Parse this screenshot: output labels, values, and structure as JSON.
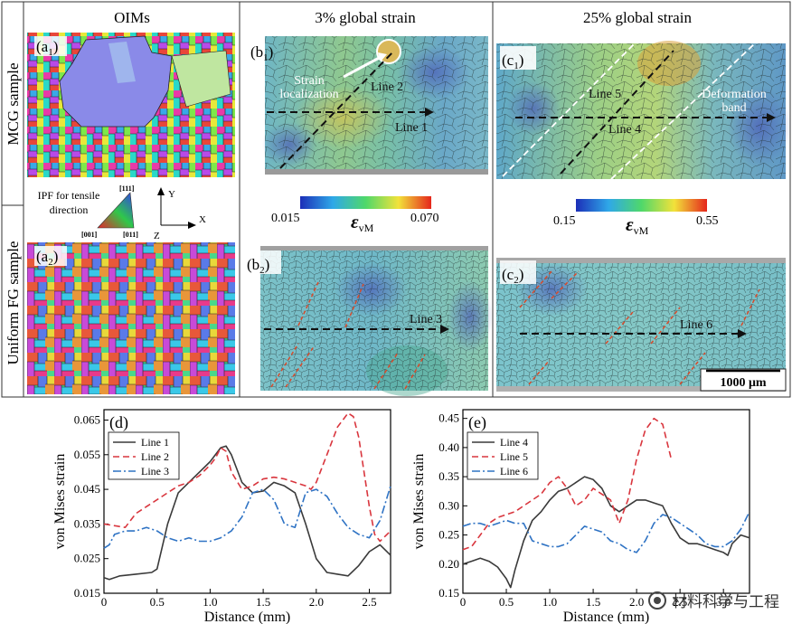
{
  "panels": {
    "col1_title": "OIMs",
    "col2_title": "3% global strain",
    "col3_title": "25% global strain",
    "row1_label": "MCG sample",
    "row2_label": "Uniform FG sample",
    "a1_label": "(a",
    "a1_sub": "1",
    "a2_label": "(a",
    "a2_sub": "2",
    "b1_label": "(b",
    "b1_sub": "1",
    "b2_label": "(b",
    "b2_sub": "2",
    "c1_label": "(c",
    "c1_sub": "1",
    "c2_label": "(c",
    "c2_sub": "2",
    "label_close": ")",
    "ipf_title_1": "IPF for tensile",
    "ipf_title_2": "direction",
    "ipf_111": "[111]",
    "ipf_001": "[001]",
    "ipf_011": "[011]",
    "axis_y": "Y",
    "axis_x": "X",
    "axis_z": "Z",
    "strain_loc_1": "Strain",
    "strain_loc_2": "localization",
    "line1": "Line 1",
    "line2": "Line 2",
    "line3": "Line 3",
    "line4": "Line 4",
    "line5": "Line 5",
    "line6": "Line 6",
    "deformation_1": "Deformation",
    "deformation_2": "band",
    "cb1_min": "0.015",
    "cb1_max": "0.070",
    "cb2_min": "0.15",
    "cb2_max": "0.55",
    "cb_symbol": "ε",
    "cb_sub": "vM",
    "scale_bar": "1000 μm"
  },
  "watermark": {
    "text": "材料科学与工程"
  },
  "colors": {
    "line_solid": "#3a3a3a",
    "line_dash": "#d9363e",
    "line_dashdot": "#2f73c4"
  },
  "chart_data": [
    {
      "id": "d",
      "type": "line",
      "panel_label": "(d)",
      "ylabel": "von Mises strain",
      "xlabel": "Distance (mm)",
      "xlim": [
        0,
        2.7
      ],
      "ylim": [
        0.015,
        0.068
      ],
      "xticks": [
        0,
        0.5,
        1.0,
        1.5,
        2.0,
        2.5
      ],
      "xtick_labels": [
        "0",
        "0.5",
        "1.0",
        "1.5",
        "2.0",
        "2.5"
      ],
      "yticks": [
        0.015,
        0.025,
        0.035,
        0.045,
        0.055,
        0.065
      ],
      "ytick_labels": [
        "0.015",
        "0.025",
        "0.035",
        "0.045",
        "0.055",
        "0.065"
      ],
      "legend": "top-left",
      "series": [
        {
          "name": "Line 1",
          "style": "solid",
          "x": [
            0,
            0.05,
            0.15,
            0.3,
            0.45,
            0.5,
            0.6,
            0.7,
            0.8,
            0.9,
            1.0,
            1.1,
            1.15,
            1.2,
            1.3,
            1.4,
            1.5,
            1.6,
            1.7,
            1.8,
            1.9,
            2.0,
            2.1,
            2.2,
            2.3,
            2.4,
            2.5,
            2.6,
            2.7
          ],
          "y": [
            0.0195,
            0.019,
            0.02,
            0.0205,
            0.021,
            0.022,
            0.035,
            0.044,
            0.047,
            0.05,
            0.053,
            0.057,
            0.0575,
            0.055,
            0.047,
            0.044,
            0.0445,
            0.047,
            0.046,
            0.044,
            0.035,
            0.025,
            0.021,
            0.0205,
            0.02,
            0.023,
            0.027,
            0.029,
            0.026
          ]
        },
        {
          "name": "Line 2",
          "style": "dashed",
          "x": [
            0,
            0.1,
            0.2,
            0.3,
            0.4,
            0.5,
            0.6,
            0.7,
            0.8,
            0.9,
            1.0,
            1.05,
            1.1,
            1.15,
            1.2,
            1.3,
            1.4,
            1.5,
            1.6,
            1.7,
            1.8,
            1.9,
            1.95,
            2.0,
            2.1,
            2.2,
            2.3,
            2.35,
            2.4,
            2.5,
            2.55,
            2.6,
            2.7
          ],
          "y": [
            0.035,
            0.0345,
            0.034,
            0.038,
            0.04,
            0.042,
            0.044,
            0.046,
            0.047,
            0.049,
            0.052,
            0.054,
            0.057,
            0.056,
            0.05,
            0.045,
            0.046,
            0.048,
            0.0485,
            0.048,
            0.047,
            0.046,
            0.045,
            0.047,
            0.055,
            0.063,
            0.067,
            0.066,
            0.06,
            0.04,
            0.032,
            0.03,
            0.033
          ]
        },
        {
          "name": "Line 3",
          "style": "dashdot",
          "x": [
            0,
            0.05,
            0.1,
            0.2,
            0.3,
            0.4,
            0.5,
            0.6,
            0.7,
            0.8,
            0.9,
            1.0,
            1.1,
            1.2,
            1.3,
            1.4,
            1.5,
            1.6,
            1.7,
            1.8,
            1.9,
            2.0,
            2.1,
            2.2,
            2.3,
            2.4,
            2.5,
            2.6,
            2.7
          ],
          "y": [
            0.028,
            0.029,
            0.032,
            0.033,
            0.033,
            0.034,
            0.033,
            0.031,
            0.03,
            0.031,
            0.03,
            0.03,
            0.031,
            0.033,
            0.037,
            0.044,
            0.045,
            0.042,
            0.035,
            0.034,
            0.044,
            0.045,
            0.043,
            0.038,
            0.034,
            0.032,
            0.031,
            0.036,
            0.046
          ]
        }
      ]
    },
    {
      "id": "e",
      "type": "line",
      "panel_label": "(e)",
      "ylabel": "von Mises strain",
      "xlabel": "Distance (mm)",
      "xlim": [
        0,
        3.3
      ],
      "ylim": [
        0.15,
        0.465
      ],
      "xticks": [
        0,
        0.5,
        1.0,
        1.5,
        2.0,
        2.5,
        3.0
      ],
      "xtick_labels": [
        "0",
        "0.5",
        "1.0",
        "1.5",
        "2.0",
        "2.5",
        "3.0"
      ],
      "yticks": [
        0.15,
        0.2,
        0.25,
        0.3,
        0.35,
        0.4,
        0.45
      ],
      "ytick_labels": [
        "0.15",
        "0.20",
        "0.25",
        "0.30",
        "0.35",
        "0.40",
        "0.45"
      ],
      "legend": "top-left",
      "series": [
        {
          "name": "Line 4",
          "style": "solid",
          "x": [
            0,
            0.1,
            0.2,
            0.3,
            0.4,
            0.5,
            0.55,
            0.6,
            0.7,
            0.8,
            0.9,
            1.0,
            1.1,
            1.2,
            1.3,
            1.4,
            1.5,
            1.6,
            1.7,
            1.8,
            1.9,
            2.0,
            2.1,
            2.2,
            2.3,
            2.4,
            2.5,
            2.6,
            2.7,
            2.8,
            2.9,
            3.0,
            3.05,
            3.1,
            3.2,
            3.3
          ],
          "y": [
            0.2,
            0.205,
            0.21,
            0.205,
            0.195,
            0.175,
            0.16,
            0.19,
            0.24,
            0.275,
            0.29,
            0.31,
            0.325,
            0.33,
            0.34,
            0.35,
            0.345,
            0.33,
            0.3,
            0.29,
            0.3,
            0.31,
            0.31,
            0.305,
            0.3,
            0.27,
            0.245,
            0.235,
            0.235,
            0.23,
            0.225,
            0.22,
            0.215,
            0.235,
            0.25,
            0.245
          ]
        },
        {
          "name": "Line 5",
          "style": "dashed",
          "x": [
            0,
            0.1,
            0.2,
            0.3,
            0.4,
            0.5,
            0.6,
            0.7,
            0.8,
            0.9,
            1.0,
            1.1,
            1.2,
            1.3,
            1.4,
            1.5,
            1.6,
            1.7,
            1.8,
            1.9,
            2.0,
            2.1,
            2.2,
            2.3,
            2.4
          ],
          "y": [
            0.225,
            0.23,
            0.25,
            0.27,
            0.28,
            0.285,
            0.29,
            0.3,
            0.31,
            0.32,
            0.34,
            0.35,
            0.33,
            0.3,
            0.31,
            0.33,
            0.32,
            0.31,
            0.27,
            0.31,
            0.38,
            0.43,
            0.45,
            0.44,
            0.38
          ]
        },
        {
          "name": "Line 6",
          "style": "dashdot",
          "x": [
            0,
            0.1,
            0.2,
            0.3,
            0.4,
            0.5,
            0.6,
            0.7,
            0.8,
            0.9,
            1.0,
            1.1,
            1.2,
            1.3,
            1.4,
            1.5,
            1.6,
            1.7,
            1.8,
            1.9,
            2.0,
            2.1,
            2.2,
            2.3,
            2.4,
            2.5,
            2.6,
            2.7,
            2.8,
            2.9,
            3.0,
            3.1,
            3.2,
            3.3
          ],
          "y": [
            0.265,
            0.27,
            0.27,
            0.265,
            0.27,
            0.275,
            0.27,
            0.27,
            0.24,
            0.235,
            0.23,
            0.23,
            0.235,
            0.25,
            0.265,
            0.26,
            0.255,
            0.24,
            0.235,
            0.225,
            0.22,
            0.24,
            0.27,
            0.285,
            0.28,
            0.27,
            0.26,
            0.25,
            0.235,
            0.23,
            0.23,
            0.24,
            0.26,
            0.29
          ]
        }
      ]
    }
  ]
}
